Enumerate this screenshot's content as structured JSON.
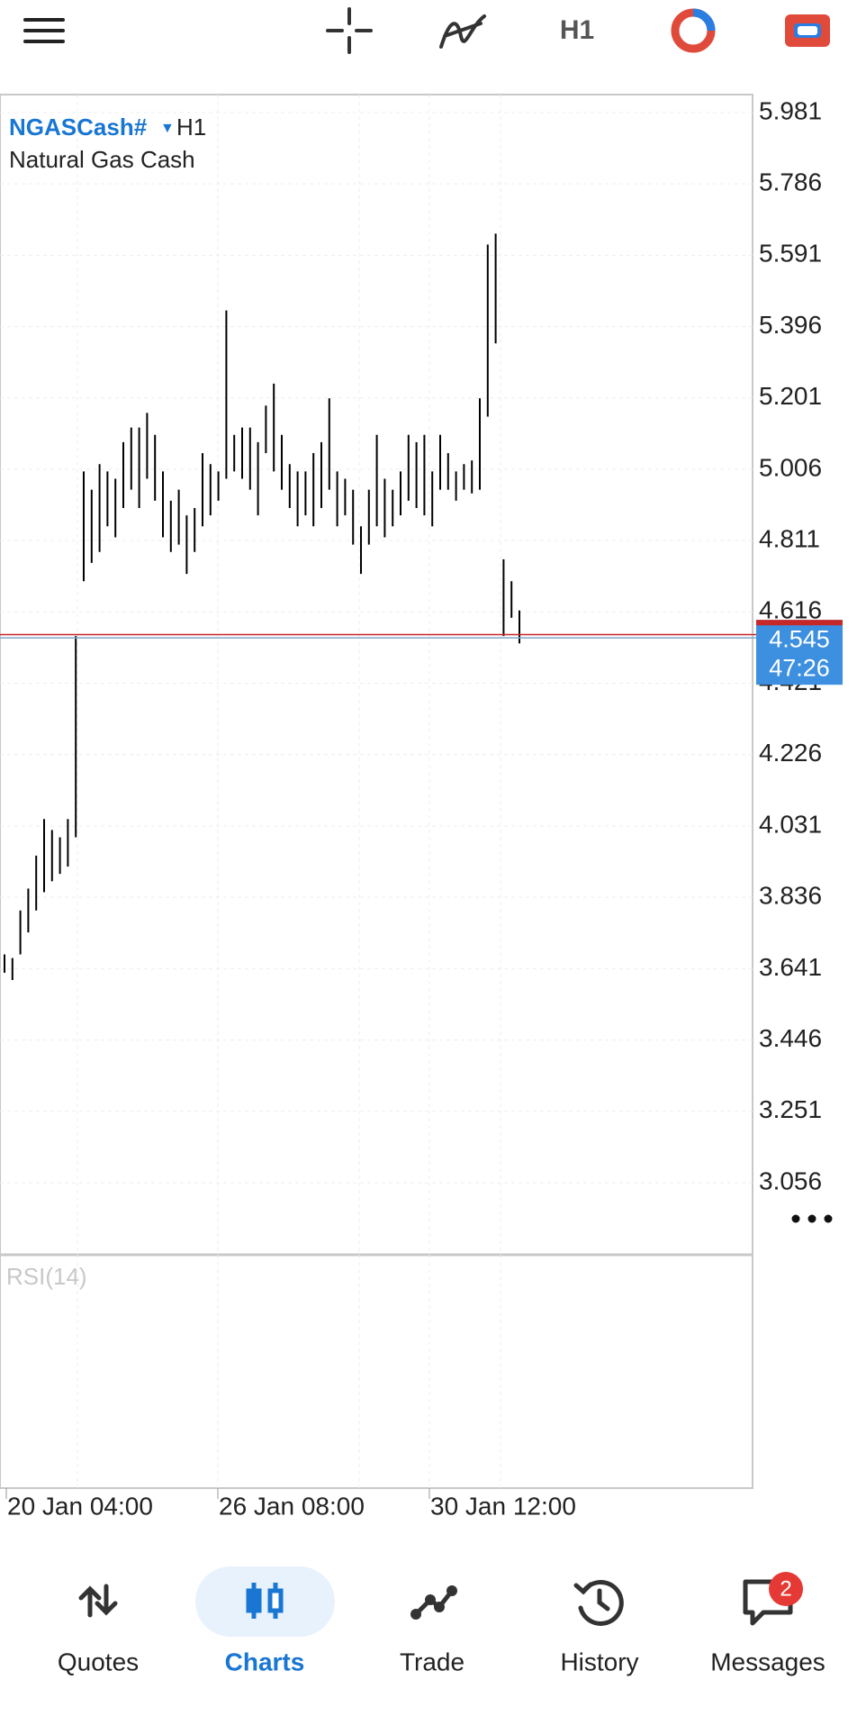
{
  "toolbar": {
    "timeframe": "H1"
  },
  "chart_data": {
    "type": "range_bar",
    "symbol": "NGASCash#",
    "timeframe": "H1",
    "description": "Natural Gas Cash",
    "indicator": "RSI(14)",
    "date_labels": [
      "20 Jan 04:00",
      "26 Jan 08:00",
      "30 Jan 12:00"
    ],
    "color": "#000000",
    "lows": [
      3.63,
      3.61,
      3.68,
      3.74,
      3.8,
      3.85,
      3.88,
      3.9,
      3.92,
      4.0,
      4.7,
      4.75,
      4.78,
      4.85,
      4.82,
      4.9,
      4.95,
      4.9,
      4.98,
      4.92,
      4.82,
      4.78,
      4.8,
      4.72,
      4.78,
      4.85,
      4.88,
      4.92,
      4.98,
      5.0,
      4.98,
      4.95,
      4.88,
      5.05,
      5.0,
      4.95,
      4.9,
      4.85,
      4.88,
      4.85,
      4.9,
      4.95,
      4.85,
      4.88,
      4.8,
      4.72,
      4.8,
      4.85,
      4.82,
      4.85,
      4.88,
      4.92,
      4.9,
      4.88,
      4.85,
      4.95,
      4.95,
      4.92,
      4.95,
      4.94,
      4.95,
      5.15,
      5.35,
      4.55,
      4.6,
      4.53
    ],
    "highs": [
      3.68,
      3.67,
      3.8,
      3.86,
      3.95,
      4.05,
      4.02,
      4.0,
      4.05,
      4.55,
      5.0,
      4.95,
      5.02,
      5.0,
      4.98,
      5.08,
      5.12,
      5.12,
      5.16,
      5.1,
      5.0,
      4.92,
      4.95,
      4.88,
      4.9,
      5.05,
      5.02,
      5.0,
      5.44,
      5.1,
      5.12,
      5.12,
      5.08,
      5.18,
      5.24,
      5.1,
      5.02,
      5.0,
      5.0,
      5.05,
      5.08,
      5.2,
      5.0,
      4.98,
      4.95,
      4.85,
      4.95,
      5.1,
      4.98,
      4.95,
      5.0,
      5.1,
      5.08,
      5.1,
      5.0,
      5.1,
      5.05,
      5.0,
      5.02,
      5.03,
      5.2,
      5.62,
      5.65,
      4.76,
      4.7,
      4.62
    ],
    "bid": 4.545,
    "ask": 4.554,
    "bid_color": "#7fa8c9",
    "ask_color": "#c62828",
    "price_label": "4.545",
    "countdown": "47:26",
    "ylim": [
      2.859,
      6.03
    ],
    "yticks": [
      5.981,
      5.786,
      5.591,
      5.396,
      5.201,
      5.006,
      4.811,
      4.616,
      4.421,
      4.226,
      4.031,
      3.836,
      3.641,
      3.446,
      3.251,
      3.056
    ],
    "grid": true
  },
  "nav": {
    "items": [
      "Quotes",
      "Charts",
      "Trade",
      "History",
      "Messages"
    ],
    "active": "Charts",
    "badge": "2"
  }
}
